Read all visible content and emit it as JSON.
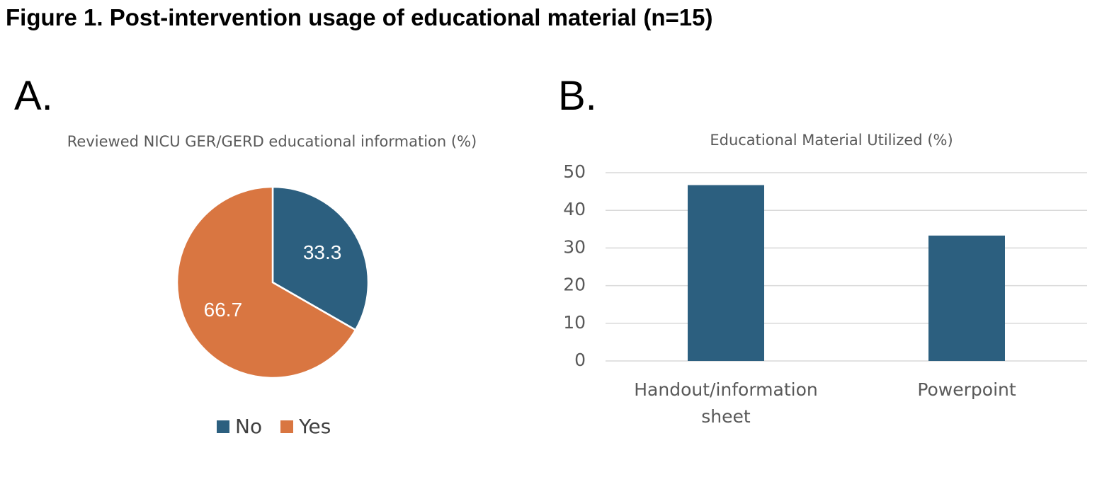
{
  "figure_title": "Figure 1. Post-intervention usage of educational material (n=15)",
  "colors": {
    "no": "#2c5f7f",
    "yes": "#d97641",
    "bar": "#2c5f7f",
    "grid": "#d9d9d9",
    "axis_text": "#595959"
  },
  "chart_data": [
    {
      "panel": "A.",
      "type": "pie",
      "title": "Reviewed NICU GER/GERD educational information (%)",
      "labels": [
        "No",
        "Yes"
      ],
      "values": [
        33.3,
        66.7
      ],
      "data_labels": [
        "33.3",
        "66.7"
      ],
      "legend_position": "bottom"
    },
    {
      "panel": "B.",
      "type": "bar",
      "title": "Educational Material Utilized (%)",
      "categories": [
        [
          "Handout/information",
          "sheet"
        ],
        [
          "Powerpoint"
        ]
      ],
      "values": [
        46.7,
        33.3
      ],
      "ylim": [
        0,
        50
      ],
      "yticks": [
        "0",
        "10",
        "20",
        "30",
        "40",
        "50"
      ],
      "grid": true
    }
  ]
}
